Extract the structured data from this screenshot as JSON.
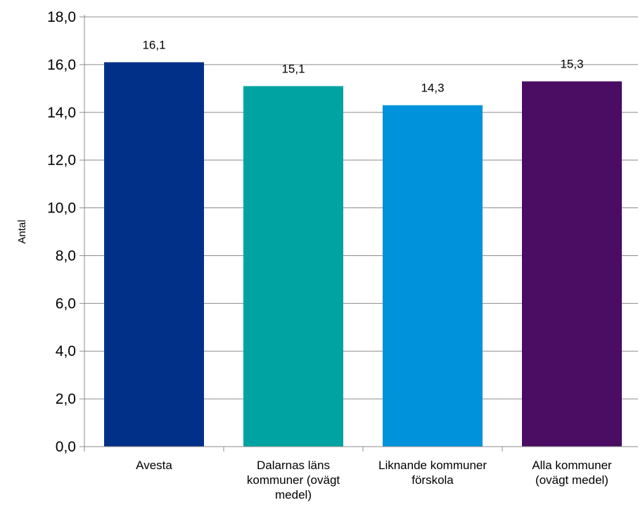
{
  "chart_data": {
    "type": "bar",
    "categories": [
      [
        "Avesta"
      ],
      [
        "Dalarnas läns",
        "kommuner (ovägt",
        "medel)"
      ],
      [
        "Liknande kommuner",
        "förskola"
      ],
      [
        "Alla kommuner",
        "(ovägt medel)"
      ]
    ],
    "values": [
      16.1,
      15.1,
      14.3,
      15.3
    ],
    "value_labels": [
      "16,1",
      "15,1",
      "14,3",
      "15,3"
    ],
    "colors": [
      "#003087",
      "#00A3A1",
      "#0092DA",
      "#4B0C63"
    ],
    "ylabel": "Antal",
    "ylim": [
      0,
      18
    ],
    "yticks": [
      0,
      2,
      4,
      6,
      8,
      10,
      12,
      14,
      16,
      18
    ],
    "ytick_labels": [
      "0,0",
      "2,0",
      "4,0",
      "6,0",
      "8,0",
      "10,0",
      "12,0",
      "14,0",
      "16,0",
      "18,0"
    ],
    "grid": true,
    "legend": "none"
  }
}
